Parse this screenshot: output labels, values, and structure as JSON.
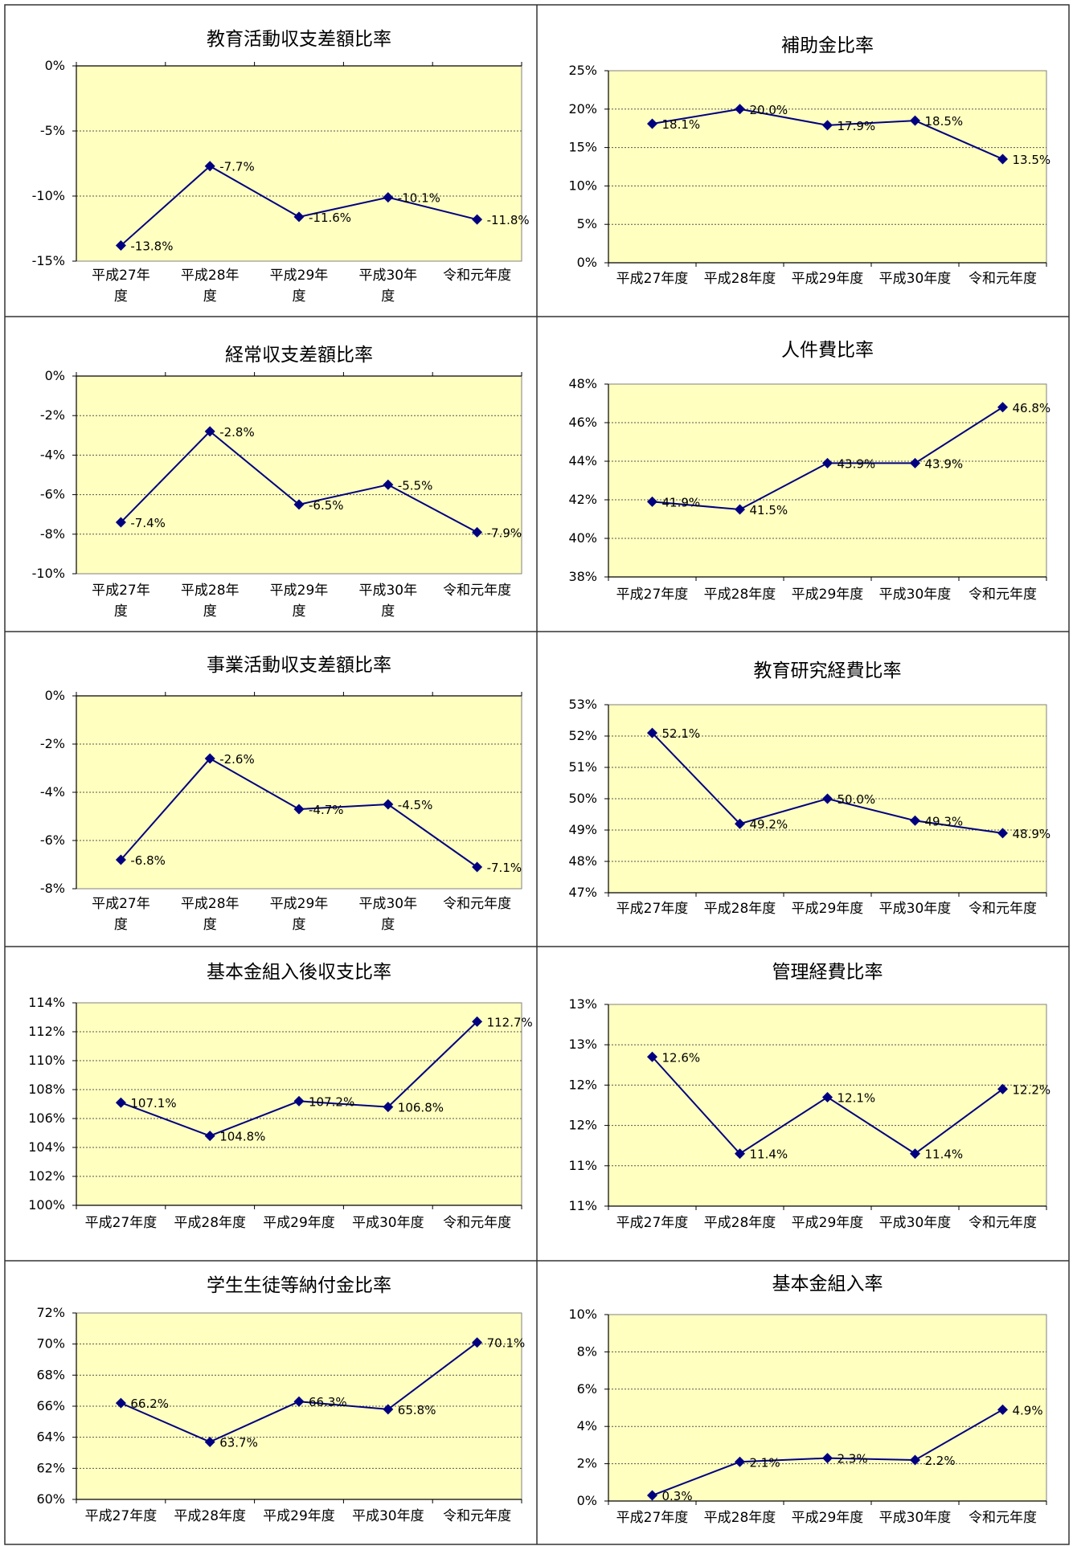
{
  "chart_data": [
    {
      "type": "line",
      "title": "教育活動収支差額比率",
      "categories": [
        "平成27年度",
        "平成28年度",
        "平成29年度",
        "平成30年度",
        "令和元年度"
      ],
      "category_labels": [
        [
          "平成27年",
          "度"
        ],
        [
          "平成28年",
          "度"
        ],
        [
          "平成29年",
          "度"
        ],
        [
          "平成30年",
          "度"
        ],
        [
          "令和元年度"
        ]
      ],
      "values": [
        -13.8,
        -7.7,
        -11.6,
        -10.1,
        -11.8
      ],
      "value_labels": [
        "-13.8%",
        "-7.7%",
        "-11.6%",
        "-10.1%",
        "-11.8%"
      ],
      "ylim": [
        -15,
        0
      ],
      "yticks": [
        0,
        -5,
        -10,
        -15
      ],
      "ytick_labels": [
        "0%",
        "-5%",
        "-10%",
        "-15%"
      ],
      "grid": true
    },
    {
      "type": "line",
      "title": "補助金比率",
      "categories": [
        "平成27年度",
        "平成28年度",
        "平成29年度",
        "平成30年度",
        "令和元年度"
      ],
      "category_labels": [
        [
          "平成27年度"
        ],
        [
          "平成28年度"
        ],
        [
          "平成29年度"
        ],
        [
          "平成30年度"
        ],
        [
          "令和元年度"
        ]
      ],
      "values": [
        18.1,
        20.0,
        17.9,
        18.5,
        13.5
      ],
      "value_labels": [
        "18.1%",
        "20.0%",
        "17.9%",
        "18.5%",
        "13.5%"
      ],
      "ylim": [
        0,
        25
      ],
      "yticks": [
        25,
        20,
        15,
        10,
        5,
        0
      ],
      "ytick_labels": [
        "25%",
        "20%",
        "15%",
        "10%",
        "5%",
        "0%"
      ],
      "grid": true
    },
    {
      "type": "line",
      "title": "経常収支差額比率",
      "categories": [
        "平成27年度",
        "平成28年度",
        "平成29年度",
        "平成30年度",
        "令和元年度"
      ],
      "category_labels": [
        [
          "平成27年",
          "度"
        ],
        [
          "平成28年",
          "度"
        ],
        [
          "平成29年",
          "度"
        ],
        [
          "平成30年",
          "度"
        ],
        [
          "令和元年度"
        ]
      ],
      "values": [
        -7.4,
        -2.8,
        -6.5,
        -5.5,
        -7.9
      ],
      "value_labels": [
        "-7.4%",
        "-2.8%",
        "-6.5%",
        "-5.5%",
        "-7.9%"
      ],
      "ylim": [
        -10,
        0
      ],
      "yticks": [
        0,
        -2,
        -4,
        -6,
        -8,
        -10
      ],
      "ytick_labels": [
        "0%",
        "-2%",
        "-4%",
        "-6%",
        "-8%",
        "-10%"
      ],
      "grid": true
    },
    {
      "type": "line",
      "title": "人件費比率",
      "categories": [
        "平成27年度",
        "平成28年度",
        "平成29年度",
        "平成30年度",
        "令和元年度"
      ],
      "category_labels": [
        [
          "平成27年度"
        ],
        [
          "平成28年度"
        ],
        [
          "平成29年度"
        ],
        [
          "平成30年度"
        ],
        [
          "令和元年度"
        ]
      ],
      "values": [
        41.9,
        41.5,
        43.9,
        43.9,
        46.8
      ],
      "value_labels": [
        "41.9%",
        "41.5%",
        "43.9%",
        "43.9%",
        "46.8%"
      ],
      "ylim": [
        38,
        48
      ],
      "yticks": [
        48,
        46,
        44,
        42,
        40,
        38
      ],
      "ytick_labels": [
        "48%",
        "46%",
        "44%",
        "42%",
        "40%",
        "38%"
      ],
      "grid": true
    },
    {
      "type": "line",
      "title": "事業活動収支差額比率",
      "categories": [
        "平成27年度",
        "平成28年度",
        "平成29年度",
        "平成30年度",
        "令和元年度"
      ],
      "category_labels": [
        [
          "平成27年",
          "度"
        ],
        [
          "平成28年",
          "度"
        ],
        [
          "平成29年",
          "度"
        ],
        [
          "平成30年",
          "度"
        ],
        [
          "令和元年度"
        ]
      ],
      "values": [
        -6.8,
        -2.6,
        -4.7,
        -4.5,
        -7.1
      ],
      "value_labels": [
        "-6.8%",
        "-2.6%",
        "-4.7%",
        "-4.5%",
        "-7.1%"
      ],
      "ylim": [
        -8,
        0
      ],
      "yticks": [
        0,
        -2,
        -4,
        -6,
        -8
      ],
      "ytick_labels": [
        "0%",
        "-2%",
        "-4%",
        "-6%",
        "-8%"
      ],
      "grid": true
    },
    {
      "type": "line",
      "title": "教育研究経費比率",
      "categories": [
        "平成27年度",
        "平成28年度",
        "平成29年度",
        "平成30年度",
        "令和元年度"
      ],
      "category_labels": [
        [
          "平成27年度"
        ],
        [
          "平成28年度"
        ],
        [
          "平成29年度"
        ],
        [
          "平成30年度"
        ],
        [
          "令和元年度"
        ]
      ],
      "values": [
        52.1,
        49.2,
        50.0,
        49.3,
        48.9
      ],
      "value_labels": [
        "52.1%",
        "49.2%",
        "50.0%",
        "49.3%",
        "48.9%"
      ],
      "ylim": [
        47,
        53
      ],
      "yticks": [
        53,
        52,
        51,
        50,
        49,
        48,
        47
      ],
      "ytick_labels": [
        "53%",
        "52%",
        "51%",
        "50%",
        "49%",
        "48%",
        "47%"
      ],
      "grid": true
    },
    {
      "type": "line",
      "title": "基本金組入後収支比率",
      "categories": [
        "平成27年度",
        "平成28年度",
        "平成29年度",
        "平成30年度",
        "令和元年度"
      ],
      "category_labels": [
        [
          "平成27年度"
        ],
        [
          "平成28年度"
        ],
        [
          "平成29年度"
        ],
        [
          "平成30年度"
        ],
        [
          "令和元年度"
        ]
      ],
      "values": [
        107.1,
        104.8,
        107.2,
        106.8,
        112.7
      ],
      "value_labels": [
        "107.1%",
        "104.8%",
        "107.2%",
        "106.8%",
        "112.7%"
      ],
      "ylim": [
        100,
        114
      ],
      "yticks": [
        114,
        112,
        110,
        108,
        106,
        104,
        102,
        100
      ],
      "ytick_labels": [
        "114%",
        "112%",
        "110%",
        "108%",
        "106%",
        "104%",
        "102%",
        "100%"
      ],
      "grid": true
    },
    {
      "type": "line",
      "title": "管理経費比率",
      "categories": [
        "平成27年度",
        "平成28年度",
        "平成29年度",
        "平成30年度",
        "令和元年度"
      ],
      "category_labels": [
        [
          "平成27年度"
        ],
        [
          "平成28年度"
        ],
        [
          "平成29年度"
        ],
        [
          "平成30年度"
        ],
        [
          "令和元年度"
        ]
      ],
      "values": [
        12.6,
        11.4,
        12.1,
        11.4,
        12.2
      ],
      "value_labels": [
        "12.6%",
        "11.4%",
        "12.1%",
        "11.4%",
        "12.2%"
      ],
      "ylim": [
        10.75,
        13.25
      ],
      "yticks": [
        13.25,
        12.75,
        12.25,
        11.75,
        11.25,
        10.75
      ],
      "ytick_labels": [
        "13%",
        "13%",
        "12%",
        "12%",
        "11%",
        "11%"
      ],
      "grid": true
    },
    {
      "type": "line",
      "title": "学生生徒等納付金比率",
      "categories": [
        "平成27年度",
        "平成28年度",
        "平成29年度",
        "平成30年度",
        "令和元年度"
      ],
      "category_labels": [
        [
          "平成27年度"
        ],
        [
          "平成28年度"
        ],
        [
          "平成29年度"
        ],
        [
          "平成30年度"
        ],
        [
          "令和元年度"
        ]
      ],
      "values": [
        66.2,
        63.7,
        66.3,
        65.8,
        70.1
      ],
      "value_labels": [
        "66.2%",
        "63.7%",
        "66.3%",
        "65.8%",
        "70.1%"
      ],
      "ylim": [
        60,
        72
      ],
      "yticks": [
        72,
        70,
        68,
        66,
        64,
        62,
        60
      ],
      "ytick_labels": [
        "72%",
        "70%",
        "68%",
        "66%",
        "64%",
        "62%",
        "60%"
      ],
      "grid": true
    },
    {
      "type": "line",
      "title": "基本金組入率",
      "categories": [
        "平成27年度",
        "平成28年度",
        "平成29年度",
        "平成30年度",
        "令和元年度"
      ],
      "category_labels": [
        [
          "平成27年度"
        ],
        [
          "平成28年度"
        ],
        [
          "平成29年度"
        ],
        [
          "平成30年度"
        ],
        [
          "令和元年度"
        ]
      ],
      "values": [
        0.3,
        2.1,
        2.3,
        2.2,
        4.9
      ],
      "value_labels": [
        "0.3%",
        "2.1%",
        "2.3%",
        "2.2%",
        "4.9%"
      ],
      "ylim": [
        0,
        10
      ],
      "yticks": [
        10,
        8,
        6,
        4,
        2,
        0
      ],
      "ytick_labels": [
        "10%",
        "8%",
        "6%",
        "4%",
        "2%",
        "0%"
      ],
      "grid": true
    }
  ],
  "style": {
    "plot_background": "#ffffc0",
    "series_color": "#000080",
    "grid_color": "#555555",
    "cell_border_color": "#333333"
  }
}
